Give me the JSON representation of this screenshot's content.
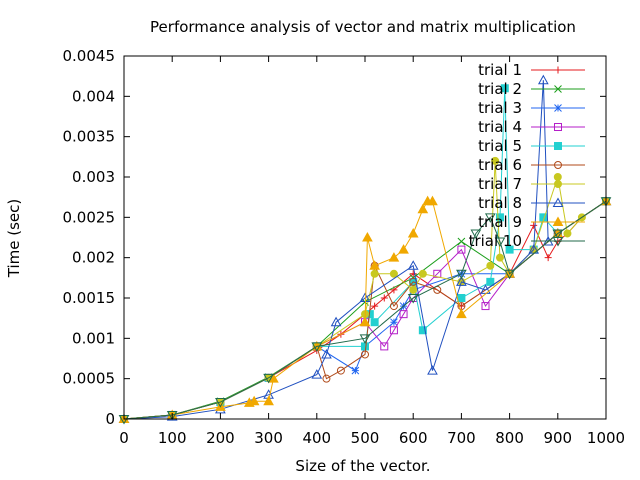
{
  "chart_data": {
    "type": "line",
    "title": "Performance analysis of vector and matrix multiplication",
    "xlabel": "Size of the vector.",
    "ylabel": "Time (sec)",
    "xlim": [
      0,
      1000
    ],
    "ylim": [
      0,
      0.0045
    ],
    "xticks": [
      "0",
      "100",
      "200",
      "300",
      "400",
      "500",
      "600",
      "700",
      "800",
      "900",
      "1000"
    ],
    "yticks": [
      "0",
      "0.0005",
      "0.001",
      "0.0015",
      "0.002",
      "0.0025",
      "0.003",
      "0.0035",
      "0.004",
      "0.0045"
    ],
    "grid": false,
    "legend_position": "top-right",
    "colors": [
      "#e41a1c",
      "#1b9e1b",
      "#2166f0",
      "#b41ec8",
      "#22d0d0",
      "#b04a1a",
      "#c8c820",
      "#2050c0",
      "#f0a800",
      "#206a4a"
    ],
    "markers": [
      "plus",
      "cross",
      "star",
      "square",
      "filled-square",
      "circle",
      "filled-circle",
      "triangle",
      "filled-triangle",
      "inverted-triangle"
    ],
    "series": [
      {
        "name": "trial 1",
        "x": [
          0,
          100,
          200,
          300,
          400,
          450,
          500,
          520,
          540,
          560,
          600,
          700,
          800,
          850,
          880,
          900,
          920,
          950,
          1000
        ],
        "y": [
          0,
          5e-05,
          0.00021,
          0.00051,
          0.00085,
          0.00105,
          0.0013,
          0.0014,
          0.0015,
          0.0016,
          0.0018,
          0.0014,
          0.0018,
          0.0024,
          0.002,
          0.0022,
          0.0023,
          0.0025,
          0.0027
        ]
      },
      {
        "name": "trial 2",
        "x": [
          0,
          100,
          200,
          300,
          400,
          500,
          600,
          700,
          800,
          900,
          1000
        ],
        "y": [
          0,
          5e-05,
          0.00022,
          0.00052,
          0.0009,
          0.00145,
          0.00175,
          0.0022,
          0.0018,
          0.0023,
          0.0027
        ]
      },
      {
        "name": "trial 3",
        "x": [
          0,
          100,
          200,
          300,
          400,
          480,
          500,
          560,
          580,
          600,
          700,
          800,
          900,
          1000
        ],
        "y": [
          0,
          5e-05,
          0.00021,
          0.00051,
          0.0009,
          0.0006,
          0.0009,
          0.0012,
          0.0014,
          0.0016,
          0.0018,
          0.0018,
          0.0023,
          0.0027
        ]
      },
      {
        "name": "trial 4",
        "x": [
          0,
          100,
          200,
          300,
          400,
          500,
          540,
          560,
          580,
          600,
          650,
          700,
          750,
          800,
          900,
          1000
        ],
        "y": [
          0,
          5e-05,
          0.00021,
          0.00051,
          0.0009,
          0.0012,
          0.0009,
          0.0011,
          0.0013,
          0.0015,
          0.0018,
          0.0021,
          0.0014,
          0.0018,
          0.0023,
          0.0027
        ]
      },
      {
        "name": "trial 5",
        "x": [
          0,
          100,
          200,
          300,
          400,
          500,
          510,
          520,
          600,
          620,
          700,
          760,
          780,
          790,
          800,
          850,
          870,
          900,
          1000
        ],
        "y": [
          0,
          5e-05,
          0.00021,
          0.00051,
          0.0009,
          0.0009,
          0.0013,
          0.0012,
          0.0017,
          0.0011,
          0.0015,
          0.0017,
          0.0025,
          0.0041,
          0.0021,
          0.0021,
          0.0025,
          0.0023,
          0.0027
        ]
      },
      {
        "name": "trial 6",
        "x": [
          0,
          100,
          200,
          300,
          400,
          420,
          450,
          500,
          520,
          560,
          600,
          650,
          700,
          800,
          900,
          1000
        ],
        "y": [
          0,
          5e-05,
          0.00021,
          0.00051,
          0.0009,
          0.0005,
          0.0006,
          0.0008,
          0.0019,
          0.0014,
          0.0017,
          0.0016,
          0.0014,
          0.0018,
          0.0023,
          0.0027
        ]
      },
      {
        "name": "trial 7",
        "x": [
          0,
          100,
          200,
          300,
          400,
          500,
          520,
          560,
          600,
          620,
          700,
          760,
          770,
          780,
          800,
          850,
          900,
          920,
          950,
          1000
        ],
        "y": [
          0,
          5e-05,
          0.00021,
          0.00051,
          0.0009,
          0.0013,
          0.0018,
          0.0018,
          0.0016,
          0.0018,
          0.0017,
          0.0019,
          0.0032,
          0.002,
          0.0018,
          0.0021,
          0.003,
          0.0023,
          0.0025,
          0.0027
        ]
      },
      {
        "name": "trial 8",
        "x": [
          0,
          100,
          200,
          300,
          400,
          420,
          440,
          500,
          600,
          640,
          700,
          750,
          800,
          850,
          870,
          880,
          900,
          1000
        ],
        "y": [
          0,
          3e-05,
          0.00012,
          0.0003,
          0.00055,
          0.0008,
          0.0012,
          0.0015,
          0.0019,
          0.0006,
          0.0017,
          0.0016,
          0.0018,
          0.0021,
          0.0042,
          0.0022,
          0.0023,
          0.0027
        ]
      },
      {
        "name": "trial 9",
        "x": [
          0,
          100,
          200,
          260,
          270,
          300,
          310,
          400,
          500,
          505,
          520,
          560,
          580,
          600,
          620,
          630,
          640,
          700,
          800,
          900,
          1000
        ],
        "y": [
          0,
          5e-05,
          0.00015,
          0.0002,
          0.00022,
          0.00022,
          0.0005,
          0.0009,
          0.0012,
          0.00225,
          0.0019,
          0.002,
          0.0021,
          0.0023,
          0.0026,
          0.0027,
          0.0027,
          0.0013,
          0.0018,
          0.0023,
          0.0027
        ]
      },
      {
        "name": "trial 10",
        "x": [
          0,
          100,
          200,
          300,
          400,
          500,
          600,
          700,
          730,
          760,
          780,
          800,
          900,
          1000
        ],
        "y": [
          0,
          5e-05,
          0.00021,
          0.00051,
          0.0009,
          0.001,
          0.0015,
          0.0018,
          0.0023,
          0.0025,
          0.0022,
          0.0018,
          0.0023,
          0.0027
        ]
      }
    ]
  }
}
